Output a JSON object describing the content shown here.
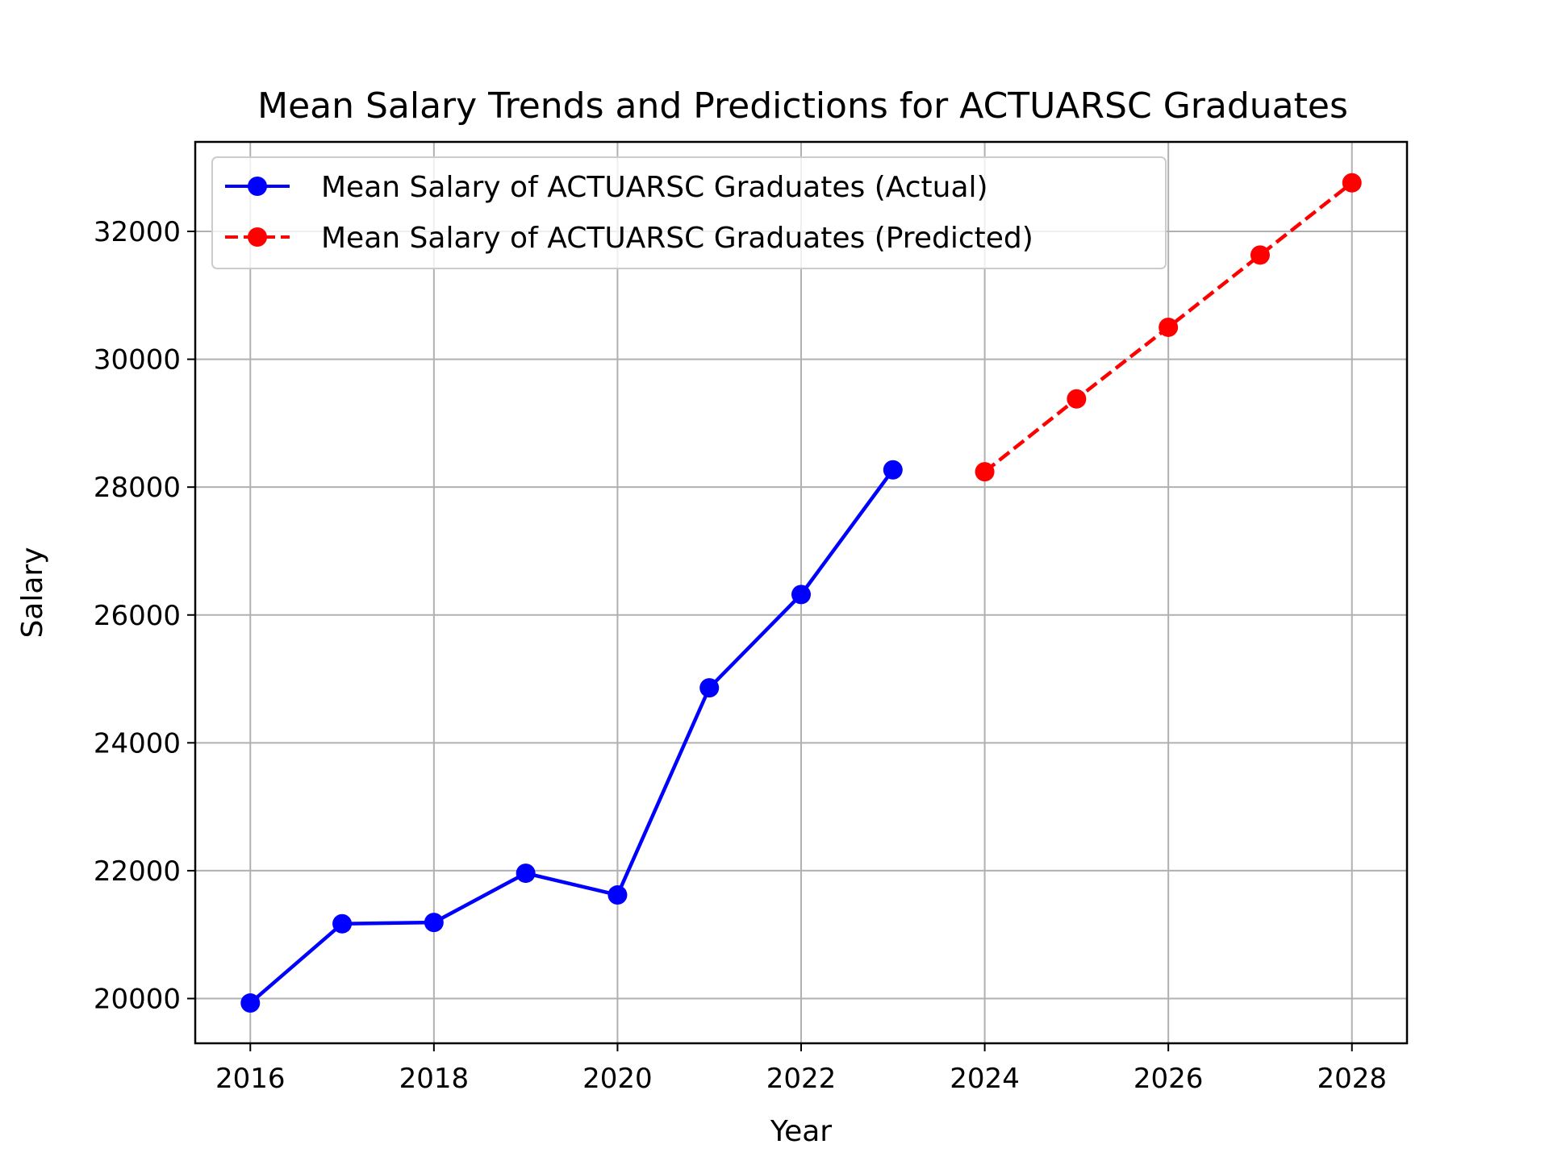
{
  "chart_data": {
    "type": "line",
    "title": "Mean Salary Trends and Predictions for ACTUARSC Graduates",
    "xlabel": "Year",
    "ylabel": "Salary",
    "xlim": [
      2015.4,
      2028.6
    ],
    "ylim": [
      19300,
      33400
    ],
    "xticks": [
      2016,
      2018,
      2020,
      2022,
      2024,
      2026,
      2028
    ],
    "yticks": [
      20000,
      22000,
      24000,
      26000,
      28000,
      30000,
      32000
    ],
    "grid": true,
    "legend_position": "top-left",
    "series": [
      {
        "name": "Mean Salary of ACTUARSC Graduates (Actual)",
        "color": "#0000ff",
        "linestyle": "solid",
        "marker": "circle",
        "x": [
          2016,
          2017,
          2018,
          2019,
          2020,
          2021,
          2022,
          2023
        ],
        "y": [
          19930,
          21170,
          21190,
          21960,
          21620,
          24860,
          26320,
          28270
        ]
      },
      {
        "name": "Mean Salary of ACTUARSC Graduates (Predicted)",
        "color": "#ff0000",
        "linestyle": "dashed",
        "marker": "circle",
        "x": [
          2024,
          2025,
          2026,
          2027,
          2028
        ],
        "y": [
          28240,
          29380,
          30500,
          31630,
          32760
        ]
      }
    ]
  }
}
